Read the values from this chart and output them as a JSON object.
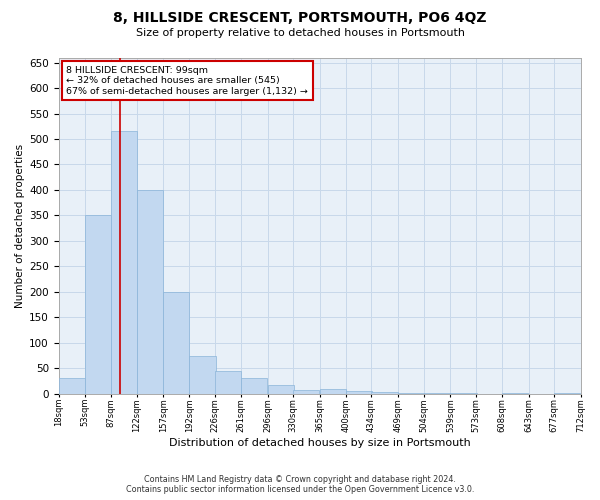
{
  "title": "8, HILLSIDE CRESCENT, PORTSMOUTH, PO6 4QZ",
  "subtitle": "Size of property relative to detached houses in Portsmouth",
  "xlabel": "Distribution of detached houses by size in Portsmouth",
  "ylabel": "Number of detached properties",
  "annotation_line1": "8 HILLSIDE CRESCENT: 99sqm",
  "annotation_line2": "← 32% of detached houses are smaller (545)",
  "annotation_line3": "67% of semi-detached houses are larger (1,132) →",
  "footer_line1": "Contains HM Land Registry data © Crown copyright and database right 2024.",
  "footer_line2": "Contains public sector information licensed under the Open Government Licence v3.0.",
  "bar_color": "#c2d8f0",
  "bar_edge_color": "#8ab4d8",
  "grid_color": "#c8d8ea",
  "background_color": "#e8f0f8",
  "vline_color": "#cc0000",
  "annotation_box_edgecolor": "#cc0000",
  "bins_left": [
    18,
    53,
    87,
    122,
    157,
    192,
    226,
    261,
    296,
    330,
    365,
    400,
    434,
    469,
    504,
    539,
    573,
    608,
    643,
    677
  ],
  "bin_width": 35,
  "bin_labels": [
    "18sqm",
    "53sqm",
    "87sqm",
    "122sqm",
    "157sqm",
    "192sqm",
    "226sqm",
    "261sqm",
    "296sqm",
    "330sqm",
    "365sqm",
    "400sqm",
    "434sqm",
    "469sqm",
    "504sqm",
    "539sqm",
    "573sqm",
    "608sqm",
    "643sqm",
    "677sqm",
    "712sqm"
  ],
  "counts": [
    30,
    350,
    515,
    400,
    200,
    75,
    45,
    30,
    18,
    8,
    10,
    5,
    3,
    2,
    2,
    1,
    0,
    1,
    0,
    1
  ],
  "property_sqm": 99,
  "ylim": [
    0,
    660
  ],
  "yticks": [
    0,
    50,
    100,
    150,
    200,
    250,
    300,
    350,
    400,
    450,
    500,
    550,
    600,
    650
  ]
}
